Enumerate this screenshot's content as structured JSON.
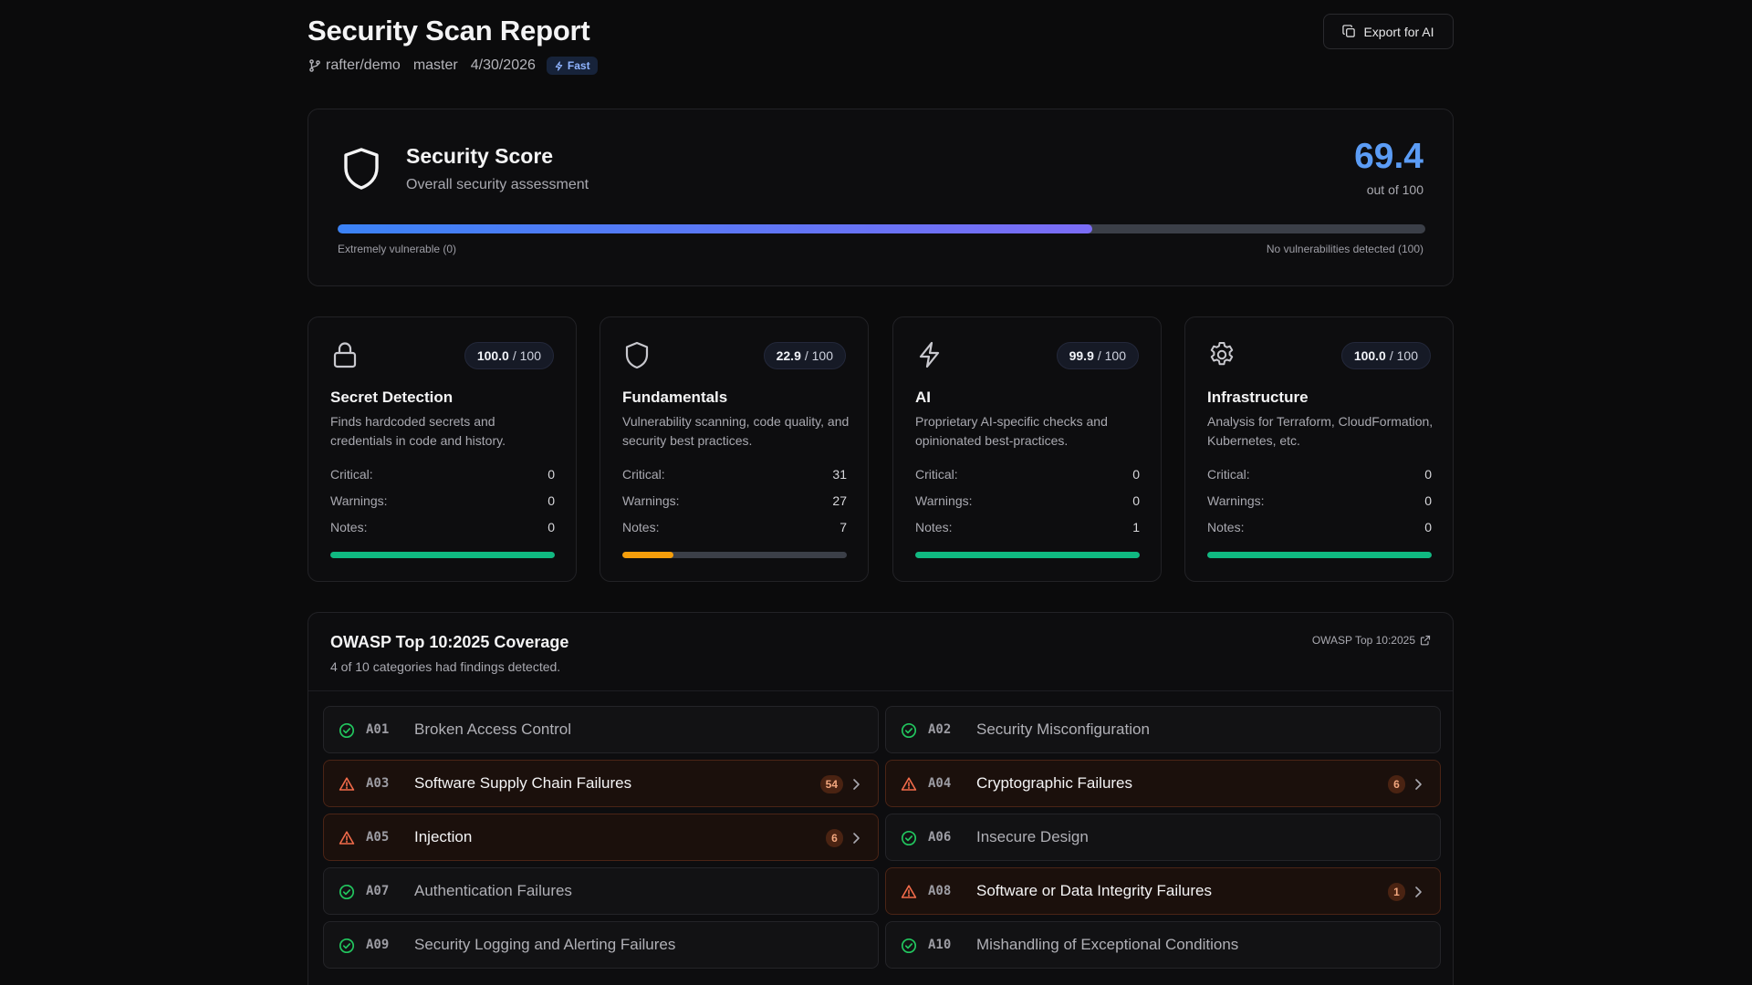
{
  "header": {
    "title": "Security Scan Report",
    "repo": "rafter/demo",
    "branch": "master",
    "date": "4/30/2026",
    "mode_badge": "Fast",
    "export_label": "Export for AI"
  },
  "score": {
    "title": "Security Score",
    "subtitle": "Overall security assessment",
    "value": "69.4",
    "fraction": 0.694,
    "out_of": "out of 100",
    "scale_low": "Extremely vulnerable (0)",
    "scale_high": "No vulnerabilities detected (100)"
  },
  "stat_labels": {
    "critical": "Critical:",
    "warnings": "Warnings:",
    "notes": "Notes:"
  },
  "categories": [
    {
      "icon": "lock-icon",
      "score": "100.0",
      "max": "/ 100",
      "fraction": 1.0,
      "name": "Secret Detection",
      "desc": "Finds hardcoded secrets and credentials in code and history.",
      "critical": "0",
      "warnings": "0",
      "notes": "0",
      "bar_color": "#10b981"
    },
    {
      "icon": "shield-icon",
      "score": "22.9",
      "max": "/ 100",
      "fraction": 0.229,
      "name": "Fundamentals",
      "desc": "Vulnerability scanning, code quality, and security best practices.",
      "critical": "31",
      "warnings": "27",
      "notes": "7",
      "bar_color": "#f59e0b"
    },
    {
      "icon": "lightning-icon",
      "score": "99.9",
      "max": "/ 100",
      "fraction": 0.999,
      "name": "AI",
      "desc": "Proprietary AI-specific checks and opinionated best-practices.",
      "critical": "0",
      "warnings": "0",
      "notes": "1",
      "bar_color": "#10b981"
    },
    {
      "icon": "gear-icon",
      "score": "100.0",
      "max": "/ 100",
      "fraction": 1.0,
      "name": "Infrastructure",
      "desc": "Analysis for Terraform, CloudFormation, Kubernetes, etc.",
      "critical": "0",
      "warnings": "0",
      "notes": "0",
      "bar_color": "#10b981"
    }
  ],
  "owasp": {
    "title": "OWASP Top 10:2025 Coverage",
    "subtitle": "4 of 10 categories had findings detected.",
    "link_label": "OWASP Top 10:2025",
    "items": [
      {
        "code": "A01",
        "name": "Broken Access Control",
        "status": "pass",
        "count": ""
      },
      {
        "code": "A02",
        "name": "Security Misconfiguration",
        "status": "pass",
        "count": ""
      },
      {
        "code": "A03",
        "name": "Software Supply Chain Failures",
        "status": "finding",
        "count": "54"
      },
      {
        "code": "A04",
        "name": "Cryptographic Failures",
        "status": "finding",
        "count": "6"
      },
      {
        "code": "A05",
        "name": "Injection",
        "status": "finding",
        "count": "6"
      },
      {
        "code": "A06",
        "name": "Insecure Design",
        "status": "pass",
        "count": ""
      },
      {
        "code": "A07",
        "name": "Authentication Failures",
        "status": "pass",
        "count": ""
      },
      {
        "code": "A08",
        "name": "Software or Data Integrity Failures",
        "status": "finding",
        "count": "1"
      },
      {
        "code": "A09",
        "name": "Security Logging and Alerting Failures",
        "status": "pass",
        "count": ""
      },
      {
        "code": "A10",
        "name": "Mishandling of Exceptional Conditions",
        "status": "pass",
        "count": ""
      }
    ]
  },
  "colors": {
    "accent": "#5b9cf5",
    "pass": "#22c55e",
    "finding": "#f26b4a"
  }
}
